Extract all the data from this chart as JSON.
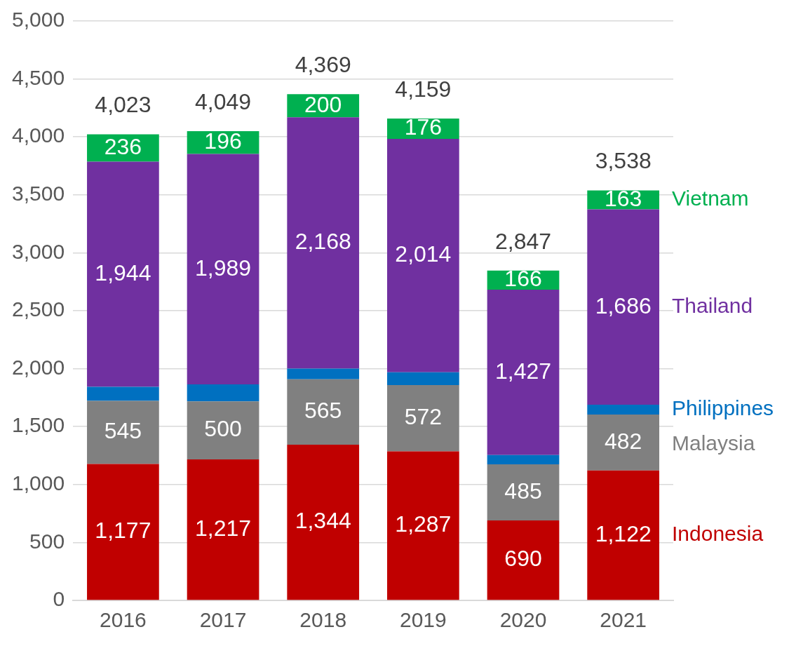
{
  "chart_data": {
    "type": "bar",
    "stacked": true,
    "categories": [
      "2016",
      "2017",
      "2018",
      "2019",
      "2020",
      "2021"
    ],
    "series": [
      {
        "name": "Indonesia",
        "color": "#c00000",
        "values": [
          1177,
          1217,
          1344,
          1287,
          690,
          1122
        ],
        "value_labels": [
          "1,177",
          "1,217",
          "1,344",
          "1,287",
          "690",
          "1,122"
        ]
      },
      {
        "name": "Malaysia",
        "color": "#808080",
        "values": [
          545,
          500,
          565,
          572,
          485,
          482
        ],
        "value_labels": [
          "545",
          "500",
          "565",
          "572",
          "485",
          "482"
        ]
      },
      {
        "name": "Philippines",
        "color": "#0070c0",
        "values": [
          121,
          147,
          92,
          110,
          79,
          85
        ],
        "value_labels": [
          null,
          null,
          null,
          null,
          null,
          null
        ]
      },
      {
        "name": "Thailand",
        "color": "#7030a0",
        "values": [
          1944,
          1989,
          2168,
          2014,
          1427,
          1686
        ],
        "value_labels": [
          "1,944",
          "1,989",
          "2,168",
          "2,014",
          "1,427",
          "1,686"
        ]
      },
      {
        "name": "Vietnam",
        "color": "#00b050",
        "values": [
          236,
          196,
          200,
          176,
          166,
          163
        ],
        "value_labels": [
          "236",
          "196",
          "200",
          "176",
          "166",
          "163"
        ]
      }
    ],
    "totals": [
      "4,023",
      "4,049",
      "4,369",
      "4,159",
      "2,847",
      "3,538"
    ],
    "ylim": [
      0,
      5000
    ],
    "yticks": [
      {
        "value": 0,
        "label": "0"
      },
      {
        "value": 500,
        "label": "500"
      },
      {
        "value": 1000,
        "label": "1,000"
      },
      {
        "value": 1500,
        "label": "1,500"
      },
      {
        "value": 2000,
        "label": "2,000"
      },
      {
        "value": 2500,
        "label": "2,500"
      },
      {
        "value": 3000,
        "label": "3,000"
      },
      {
        "value": 3500,
        "label": "3,500"
      },
      {
        "value": 4000,
        "label": "4,000"
      },
      {
        "value": 4500,
        "label": "4,500"
      },
      {
        "value": 5000,
        "label": "5,000"
      }
    ],
    "grid": "y",
    "legend": false
  }
}
